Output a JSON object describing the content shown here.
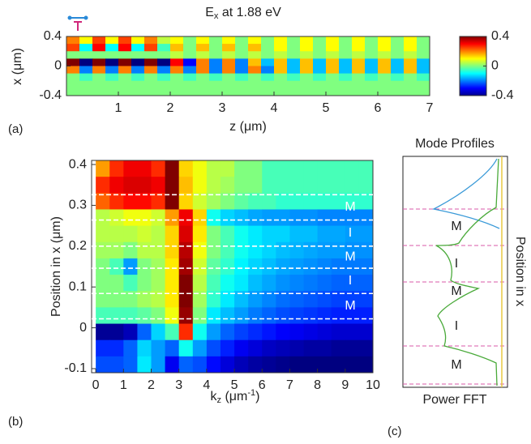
{
  "chart_data": [
    {
      "type": "heatmap",
      "panel_label": "(a)",
      "title": [
        "E",
        "x",
        " at 1.88 eV"
      ],
      "xlabel": "z (μm)",
      "ylabel": "x (μm)",
      "xlim": [
        0,
        7
      ],
      "ylim": [
        -0.4,
        0.4
      ],
      "xticks": [
        1,
        2,
        3,
        4,
        5,
        6,
        7
      ],
      "yticks": [
        -0.4,
        0,
        0.4
      ],
      "colormap": "jet",
      "colorbar": {
        "lim": [
          -0.4,
          0.4
        ],
        "ticks": [
          -0.4,
          0,
          0.4
        ]
      },
      "x": [
        0.125,
        0.375,
        0.625,
        0.875,
        1.125,
        1.375,
        1.625,
        1.875,
        2.125,
        2.375,
        2.625,
        2.875,
        3.125,
        3.375,
        3.625,
        3.875,
        4.125,
        4.375,
        4.625,
        4.875,
        5.125,
        5.375,
        5.625,
        5.875,
        6.125,
        6.375,
        6.625,
        6.875
      ],
      "y": [
        0.35,
        0.25,
        0.15,
        0.05,
        -0.05,
        -0.15,
        -0.25,
        -0.35
      ],
      "z": [
        [
          0.2,
          0.1,
          0.25,
          0.1,
          0.25,
          0.1,
          0.2,
          0.05,
          0.1,
          0,
          0.1,
          0,
          0.1,
          0,
          0.1,
          0,
          0.1,
          0,
          0.1,
          0,
          0.1,
          0,
          0.1,
          0,
          0.1,
          0,
          0.1,
          0
        ],
        [
          0.25,
          -0.1,
          0.3,
          -0.1,
          0.3,
          -0.1,
          0.25,
          -0.05,
          0.15,
          0,
          0.15,
          0,
          0.15,
          0,
          0.15,
          0,
          0.1,
          0,
          0.1,
          0,
          0.1,
          0,
          0.1,
          0,
          0.1,
          0,
          0.1,
          0
        ],
        [
          0,
          0,
          0,
          0,
          0,
          0,
          0,
          0,
          0.05,
          0,
          0.05,
          0,
          0.05,
          0,
          0.05,
          0,
          0.05,
          0,
          0.05,
          0,
          0.05,
          0,
          0.05,
          0,
          0.05,
          0,
          0.05,
          0
        ],
        [
          0.4,
          -0.4,
          0.4,
          -0.4,
          0.4,
          -0.4,
          0.4,
          -0.4,
          0.3,
          -0.3,
          0.2,
          -0.2,
          0.2,
          -0.2,
          0.15,
          -0.15,
          0.15,
          -0.15,
          0.15,
          -0.15,
          0.15,
          -0.15,
          0.15,
          -0.15,
          0.15,
          -0.15,
          0.15,
          -0.15
        ],
        [
          0.2,
          -0.2,
          0.2,
          -0.2,
          0.2,
          -0.2,
          0.2,
          -0.2,
          0.2,
          -0.2,
          0.2,
          -0.2,
          0.2,
          -0.2,
          0.2,
          -0.2,
          0.15,
          -0.15,
          0.15,
          -0.15,
          0.15,
          -0.15,
          0.15,
          -0.15,
          0.15,
          -0.15,
          0.15,
          -0.15
        ],
        [
          0,
          -0.05,
          0,
          -0.05,
          0,
          -0.05,
          0,
          -0.05,
          0,
          -0.05,
          0,
          -0.05,
          0,
          -0.05,
          0,
          -0.05,
          0,
          -0.05,
          0,
          -0.05,
          0,
          -0.05,
          0,
          -0.05,
          0,
          -0.05,
          0,
          -0.05
        ],
        [
          0,
          0,
          0,
          0,
          0,
          0,
          0,
          0,
          0,
          0,
          0,
          0,
          0,
          0,
          0,
          0,
          0,
          0,
          0,
          0,
          0,
          0,
          0,
          0,
          0,
          0,
          0,
          0
        ],
        [
          0,
          0,
          0,
          0,
          0,
          0,
          0,
          0,
          0,
          0,
          0,
          0,
          0,
          0,
          0,
          0,
          0,
          0,
          0,
          0,
          0,
          0,
          0,
          0,
          0,
          0,
          0,
          0
        ]
      ]
    },
    {
      "type": "heatmap",
      "panel_label": "(b)",
      "xlabel": [
        "k",
        "z",
        " (μm",
        "-1",
        ")"
      ],
      "ylabel": "Position in x (μm)",
      "xlim": [
        -0.15,
        10
      ],
      "ylim": [
        -0.11,
        0.41
      ],
      "xticks": [
        0,
        1,
        2,
        3,
        4,
        5,
        6,
        7,
        8,
        9,
        10
      ],
      "yticks": [
        -0.1,
        0,
        0.1,
        0.2,
        0.3,
        0.4
      ],
      "colormap": "jet",
      "x": [
        0.25,
        0.75,
        1.25,
        1.75,
        2.25,
        2.75,
        3.25,
        3.75,
        4.25,
        4.75,
        5.25,
        5.75,
        6.25,
        6.75,
        7.25,
        7.75,
        8.25,
        8.75,
        9.25,
        9.75
      ],
      "y": [
        0.39,
        0.35,
        0.31,
        0.27,
        0.23,
        0.19,
        0.15,
        0.11,
        0.07,
        0.03,
        -0.01,
        -0.05,
        -0.09
      ],
      "z": [
        [
          0.75,
          0.85,
          0.9,
          0.9,
          0.85,
          1.0,
          0.7,
          0.65,
          0.6,
          0.6,
          0.55,
          0.55,
          0.5,
          0.5,
          0.5,
          0.5,
          0.5,
          0.5,
          0.5,
          0.5
        ],
        [
          0.85,
          0.9,
          0.92,
          0.92,
          0.9,
          1.0,
          0.72,
          0.65,
          0.6,
          0.58,
          0.55,
          0.55,
          0.5,
          0.5,
          0.5,
          0.5,
          0.5,
          0.5,
          0.5,
          0.5
        ],
        [
          0.8,
          0.85,
          0.88,
          0.88,
          0.85,
          1.0,
          0.7,
          0.62,
          0.58,
          0.55,
          0.52,
          0.5,
          0.5,
          0.48,
          0.48,
          0.48,
          0.48,
          0.48,
          0.48,
          0.48
        ],
        [
          0.6,
          0.62,
          0.65,
          0.65,
          0.62,
          0.75,
          0.9,
          0.7,
          0.45,
          0.4,
          0.38,
          0.36,
          0.35,
          0.35,
          0.34,
          0.34,
          0.33,
          0.33,
          0.33,
          0.33
        ],
        [
          0.6,
          0.6,
          0.6,
          0.62,
          0.6,
          0.7,
          0.92,
          0.68,
          0.55,
          0.5,
          0.45,
          0.42,
          0.4,
          0.4,
          0.38,
          0.38,
          0.36,
          0.36,
          0.35,
          0.35
        ],
        [
          0.58,
          0.58,
          0.55,
          0.6,
          0.6,
          0.7,
          0.95,
          0.65,
          0.55,
          0.5,
          0.45,
          0.42,
          0.4,
          0.38,
          0.37,
          0.36,
          0.35,
          0.35,
          0.34,
          0.34
        ],
        [
          0.55,
          0.5,
          0.35,
          0.55,
          0.58,
          0.68,
          0.97,
          0.62,
          0.52,
          0.48,
          0.43,
          0.4,
          0.38,
          0.36,
          0.35,
          0.34,
          0.33,
          0.32,
          0.32,
          0.32
        ],
        [
          0.55,
          0.55,
          0.5,
          0.55,
          0.58,
          0.68,
          1.0,
          0.6,
          0.5,
          0.45,
          0.42,
          0.38,
          0.36,
          0.34,
          0.33,
          0.32,
          0.31,
          0.3,
          0.3,
          0.3
        ],
        [
          0.55,
          0.55,
          0.55,
          0.58,
          0.6,
          0.68,
          1.0,
          0.58,
          0.48,
          0.42,
          0.38,
          0.35,
          0.33,
          0.31,
          0.3,
          0.29,
          0.28,
          0.27,
          0.27,
          0.27
        ],
        [
          0.5,
          0.5,
          0.5,
          0.52,
          0.55,
          0.65,
          0.98,
          0.55,
          0.42,
          0.38,
          0.35,
          0.32,
          0.3,
          0.28,
          0.27,
          0.26,
          0.25,
          0.24,
          0.24,
          0.24
        ],
        [
          0.12,
          0.12,
          0.15,
          0.3,
          0.4,
          0.5,
          0.85,
          0.45,
          0.35,
          0.3,
          0.27,
          0.25,
          0.23,
          0.21,
          0.2,
          0.19,
          0.18,
          0.17,
          0.17,
          0.17
        ],
        [
          0.25,
          0.25,
          0.3,
          0.4,
          0.35,
          0.3,
          0.45,
          0.35,
          0.28,
          0.24,
          0.2,
          0.18,
          0.16,
          0.15,
          0.14,
          0.13,
          0.13,
          0.12,
          0.12,
          0.12
        ],
        [
          0.28,
          0.28,
          0.3,
          0.42,
          0.35,
          0.2,
          0.3,
          0.28,
          0.22,
          0.18,
          0.15,
          0.13,
          0.12,
          0.11,
          0.1,
          0.1,
          0.1,
          0.1,
          0.1,
          0.1
        ]
      ],
      "interfaces": [
        0.326,
        0.264,
        0.2,
        0.146,
        0.084,
        0.022
      ],
      "layers": [
        "M",
        "I",
        "M",
        "I",
        "M"
      ]
    },
    {
      "type": "profile",
      "panel_label": "(c)",
      "title": "Mode Profiles",
      "xlabel": "Power FFT",
      "ylabel": "Position in x",
      "layers": [
        "M",
        "I",
        "M",
        "I",
        "M"
      ]
    }
  ]
}
